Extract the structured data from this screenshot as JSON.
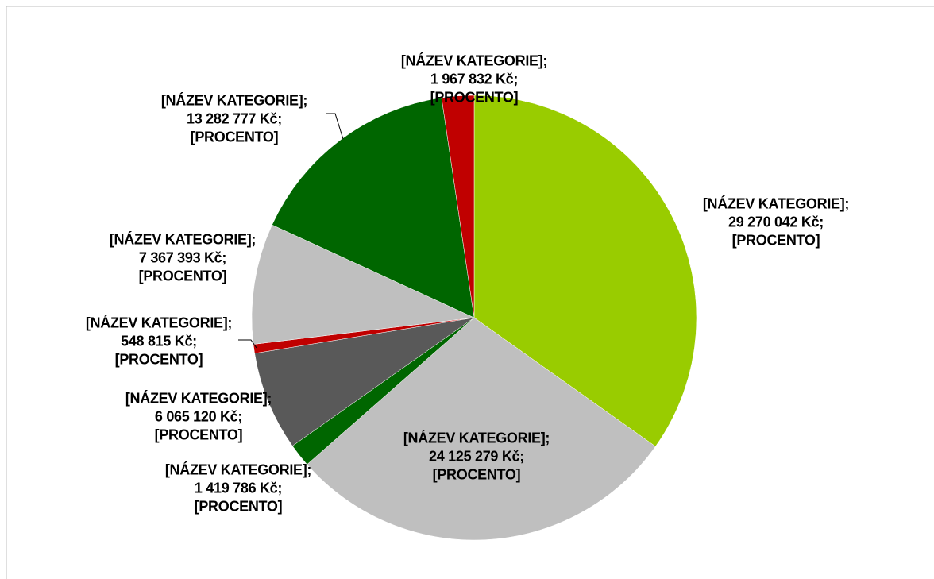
{
  "chart_data": {
    "type": "pie",
    "values": [
      29270042,
      24125279,
      1419786,
      6065120,
      548815,
      7367393,
      13282777,
      1967832
    ],
    "value_labels": [
      "[NÁZEV KATEGORIE]; 29 270 042 Kč; [PROCENTO]",
      "[NÁZEV KATEGORIE]; 24 125 279 Kč; [PROCENTO]",
      "[NÁZEV KATEGORIE]; 1 419 786 Kč; [PROCENTO]",
      "[NÁZEV KATEGORIE]; 6 065 120 Kč; [PROCENTO]",
      "[NÁZEV KATEGORIE]; 548 815 Kč; [PROCENTO]",
      "[NÁZEV KATEGORIE]; 7 367 393 Kč; [PROCENTO]",
      "[NÁZEV KATEGORIE]; 13 282 777 Kč; [PROCENTO]",
      "[NÁZEV KATEGORIE]; 1 967 832 Kč; [PROCENTO]"
    ],
    "colors": [
      "#99cc00",
      "#bfbfbf",
      "#006600",
      "#595959",
      "#c00000",
      "#bfbfbf",
      "#006600",
      "#c00000"
    ]
  }
}
